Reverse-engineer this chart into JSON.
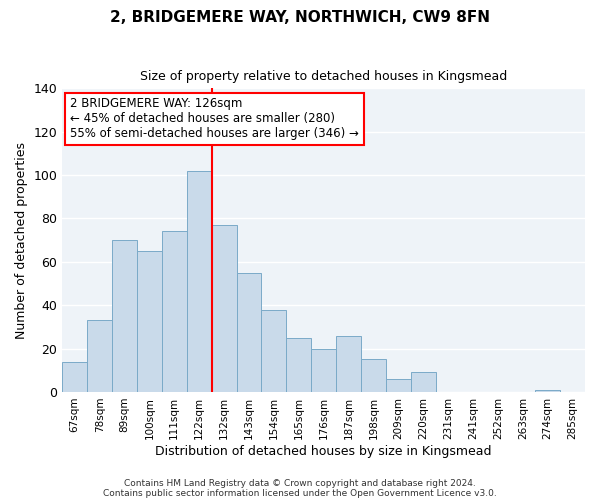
{
  "title": "2, BRIDGEMERE WAY, NORTHWICH, CW9 8FN",
  "subtitle": "Size of property relative to detached houses in Kingsmead",
  "xlabel": "Distribution of detached houses by size in Kingsmead",
  "ylabel": "Number of detached properties",
  "bar_color": "#c9daea",
  "bar_edge_color": "#7aaac8",
  "bins": [
    "67sqm",
    "78sqm",
    "89sqm",
    "100sqm",
    "111sqm",
    "122sqm",
    "132sqm",
    "143sqm",
    "154sqm",
    "165sqm",
    "176sqm",
    "187sqm",
    "198sqm",
    "209sqm",
    "220sqm",
    "231sqm",
    "241sqm",
    "252sqm",
    "263sqm",
    "274sqm",
    "285sqm"
  ],
  "values": [
    14,
    33,
    70,
    65,
    74,
    102,
    77,
    55,
    38,
    25,
    20,
    26,
    15,
    6,
    9,
    0,
    0,
    0,
    0,
    1,
    0
  ],
  "vline_x": 5.5,
  "vline_color": "red",
  "annotation_title": "2 BRIDGEMERE WAY: 126sqm",
  "annotation_line1": "← 45% of detached houses are smaller (280)",
  "annotation_line2": "55% of semi-detached houses are larger (346) →",
  "annotation_box_color": "white",
  "annotation_box_edge": "red",
  "ylim": [
    0,
    140
  ],
  "yticks": [
    0,
    20,
    40,
    60,
    80,
    100,
    120,
    140
  ],
  "footer1": "Contains HM Land Registry data © Crown copyright and database right 2024.",
  "footer2": "Contains public sector information licensed under the Open Government Licence v3.0.",
  "bg_color": "#ffffff",
  "plot_bg_color": "#eef3f8",
  "grid_color": "#ffffff",
  "figsize": [
    6.0,
    5.0
  ],
  "dpi": 100
}
